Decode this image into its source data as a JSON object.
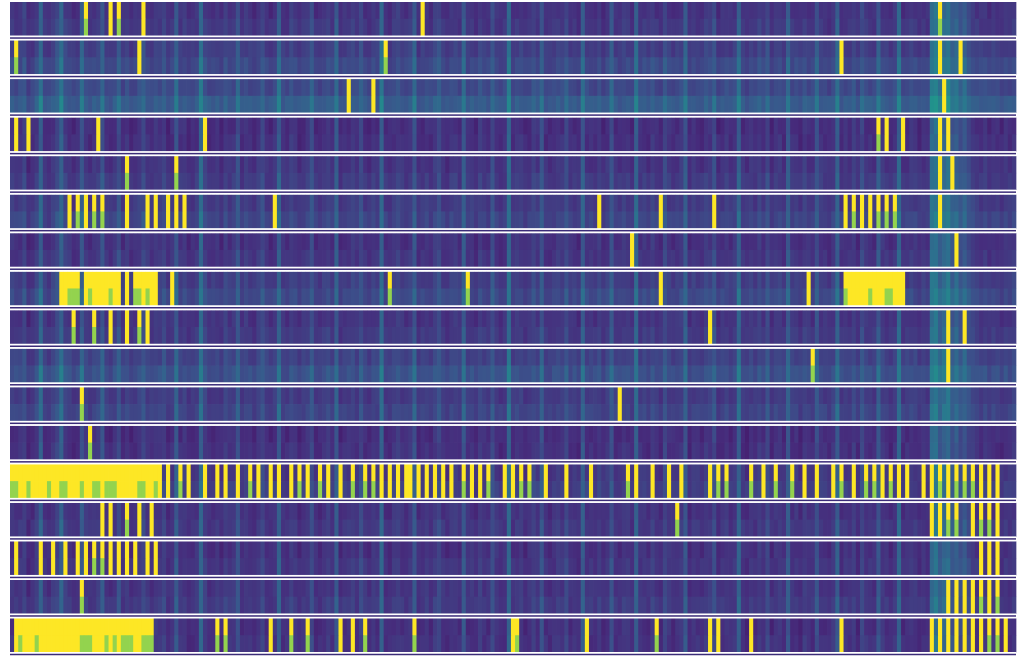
{
  "chart_data": {
    "type": "heatmap",
    "title": "",
    "xlabel": "",
    "ylabel": "",
    "colormap": "viridis",
    "colors": {
      "low": "#3b2c78",
      "mid": "#2f6f8c",
      "high": "#fde725",
      "separator": "#ffffff",
      "background": "#ffffff"
    },
    "n_bands": 17,
    "band_labels": [],
    "columns_per_row": 245,
    "column_baseline": [
      0.15,
      0.14,
      0.15,
      0.2,
      0.1,
      0.12,
      0.18,
      0.33,
      0.14,
      0.12,
      0.16,
      0.22,
      0.34,
      0.18,
      0.15,
      0.12,
      0.14,
      0.3,
      0.16,
      0.13,
      0.15,
      0.17,
      0.28,
      0.14,
      0.12,
      0.15,
      0.25,
      0.13,
      0.16,
      0.12,
      0.14,
      0.17,
      0.22,
      0.15,
      0.13,
      0.17,
      0.15,
      0.2,
      0.12,
      0.14,
      0.3,
      0.14,
      0.16,
      0.12,
      0.13,
      0.15,
      0.36,
      0.18,
      0.13,
      0.14,
      0.15,
      0.12,
      0.18,
      0.14,
      0.15,
      0.26,
      0.13,
      0.16,
      0.14,
      0.12,
      0.16,
      0.22,
      0.14,
      0.12,
      0.15,
      0.32,
      0.14,
      0.13,
      0.18,
      0.15,
      0.12,
      0.14,
      0.16,
      0.24,
      0.13,
      0.12,
      0.15,
      0.18,
      0.14,
      0.3,
      0.12,
      0.14,
      0.15,
      0.17,
      0.13,
      0.22,
      0.14,
      0.12,
      0.16,
      0.14,
      0.35,
      0.13,
      0.12,
      0.15,
      0.18,
      0.14,
      0.13,
      0.16,
      0.28,
      0.12,
      0.14,
      0.15,
      0.13,
      0.17,
      0.22,
      0.14,
      0.12,
      0.15,
      0.16,
      0.13,
      0.3,
      0.14,
      0.15,
      0.12,
      0.18,
      0.14,
      0.13,
      0.24,
      0.15,
      0.12,
      0.14,
      0.36,
      0.13,
      0.15,
      0.16,
      0.12,
      0.14,
      0.18,
      0.15,
      0.27,
      0.13,
      0.12,
      0.14,
      0.16,
      0.15,
      0.22,
      0.13,
      0.14,
      0.12,
      0.31,
      0.15,
      0.14,
      0.13,
      0.17,
      0.12,
      0.15,
      0.26,
      0.14,
      0.13,
      0.16,
      0.15,
      0.12,
      0.33,
      0.14,
      0.15,
      0.13,
      0.18,
      0.14,
      0.12,
      0.22,
      0.15,
      0.13,
      0.14,
      0.16,
      0.29,
      0.12,
      0.15,
      0.14,
      0.13,
      0.17,
      0.15,
      0.24,
      0.12,
      0.14,
      0.16,
      0.13,
      0.15,
      0.34,
      0.14,
      0.12,
      0.15,
      0.13,
      0.18,
      0.14,
      0.22,
      0.12,
      0.15,
      0.16,
      0.13,
      0.3,
      0.14,
      0.15,
      0.12,
      0.17,
      0.14,
      0.13,
      0.26,
      0.15,
      0.14,
      0.12,
      0.16,
      0.32,
      0.13,
      0.15,
      0.14,
      0.18,
      0.12,
      0.22,
      0.15,
      0.14,
      0.13,
      0.28,
      0.16,
      0.14,
      0.12,
      0.15,
      0.35,
      0.13,
      0.14,
      0.16,
      0.15,
      0.12,
      0.14,
      0.13,
      0.38,
      0.42,
      0.3,
      0.36,
      0.4,
      0.28,
      0.33,
      0.25,
      0.3,
      0.22,
      0.18,
      0.15,
      0.14,
      0.16,
      0.13,
      0.15,
      0.14,
      0.12,
      0.15,
      0.13,
      0.16
    ],
    "band_extra": [
      0.05,
      0.12,
      0.2,
      0.02,
      0.06,
      0.1,
      0.04,
      0.12,
      0.06,
      0.15,
      0.1,
      0.02,
      0.08,
      0.05,
      0.04,
      0.06,
      0.03
    ],
    "bright_cells": [
      [
        0,
        18
      ],
      [
        0,
        24
      ],
      [
        0,
        26
      ],
      [
        0,
        32
      ],
      [
        0,
        100
      ],
      [
        0,
        226
      ],
      [
        1,
        1
      ],
      [
        1,
        31
      ],
      [
        1,
        91
      ],
      [
        1,
        202
      ],
      [
        1,
        226
      ],
      [
        1,
        231
      ],
      [
        2,
        82
      ],
      [
        2,
        88
      ],
      [
        2,
        227
      ],
      [
        3,
        1
      ],
      [
        3,
        4
      ],
      [
        3,
        21
      ],
      [
        3,
        47
      ],
      [
        3,
        211
      ],
      [
        3,
        213
      ],
      [
        3,
        217
      ],
      [
        3,
        226
      ],
      [
        3,
        228
      ],
      [
        4,
        28
      ],
      [
        4,
        40
      ],
      [
        4,
        226
      ],
      [
        4,
        229
      ],
      [
        5,
        14
      ],
      [
        5,
        16
      ],
      [
        5,
        18
      ],
      [
        5,
        20
      ],
      [
        5,
        22
      ],
      [
        5,
        28
      ],
      [
        5,
        33
      ],
      [
        5,
        35
      ],
      [
        5,
        38
      ],
      [
        5,
        40
      ],
      [
        5,
        42
      ],
      [
        5,
        64
      ],
      [
        5,
        143
      ],
      [
        5,
        158
      ],
      [
        5,
        171
      ],
      [
        5,
        203
      ],
      [
        5,
        205
      ],
      [
        5,
        207
      ],
      [
        5,
        209
      ],
      [
        5,
        211
      ],
      [
        5,
        213
      ],
      [
        5,
        215
      ],
      [
        5,
        226
      ],
      [
        6,
        151
      ],
      [
        6,
        230
      ],
      [
        7,
        12
      ],
      [
        7,
        13
      ],
      [
        7,
        14
      ],
      [
        7,
        15
      ],
      [
        7,
        16
      ],
      [
        7,
        18
      ],
      [
        7,
        19
      ],
      [
        7,
        20
      ],
      [
        7,
        21
      ],
      [
        7,
        22
      ],
      [
        7,
        23
      ],
      [
        7,
        24
      ],
      [
        7,
        25
      ],
      [
        7,
        26
      ],
      [
        7,
        28
      ],
      [
        7,
        30
      ],
      [
        7,
        31
      ],
      [
        7,
        32
      ],
      [
        7,
        33
      ],
      [
        7,
        34
      ],
      [
        7,
        35
      ],
      [
        7,
        39
      ],
      [
        7,
        92
      ],
      [
        7,
        111
      ],
      [
        7,
        158
      ],
      [
        7,
        194
      ],
      [
        7,
        203
      ],
      [
        7,
        204
      ],
      [
        7,
        205
      ],
      [
        7,
        206
      ],
      [
        7,
        207
      ],
      [
        7,
        208
      ],
      [
        7,
        209
      ],
      [
        7,
        210
      ],
      [
        7,
        211
      ],
      [
        7,
        212
      ],
      [
        7,
        213
      ],
      [
        7,
        214
      ],
      [
        7,
        215
      ],
      [
        7,
        216
      ],
      [
        7,
        217
      ],
      [
        8,
        15
      ],
      [
        8,
        20
      ],
      [
        8,
        24
      ],
      [
        8,
        28
      ],
      [
        8,
        31
      ],
      [
        8,
        33
      ],
      [
        8,
        170
      ],
      [
        8,
        228
      ],
      [
        8,
        232
      ],
      [
        9,
        195
      ],
      [
        9,
        228
      ],
      [
        10,
        17
      ],
      [
        10,
        148
      ],
      [
        11,
        19
      ],
      [
        12,
        0
      ],
      [
        12,
        1
      ],
      [
        12,
        2
      ],
      [
        12,
        3
      ],
      [
        12,
        4
      ],
      [
        12,
        5
      ],
      [
        12,
        6
      ],
      [
        12,
        7
      ],
      [
        12,
        8
      ],
      [
        12,
        9
      ],
      [
        12,
        10
      ],
      [
        12,
        11
      ],
      [
        12,
        12
      ],
      [
        12,
        13
      ],
      [
        12,
        14
      ],
      [
        12,
        15
      ],
      [
        12,
        16
      ],
      [
        12,
        17
      ],
      [
        12,
        18
      ],
      [
        12,
        19
      ],
      [
        12,
        20
      ],
      [
        12,
        21
      ],
      [
        12,
        22
      ],
      [
        12,
        23
      ],
      [
        12,
        24
      ],
      [
        12,
        25
      ],
      [
        12,
        26
      ],
      [
        12,
        27
      ],
      [
        12,
        28
      ],
      [
        12,
        29
      ],
      [
        12,
        30
      ],
      [
        12,
        31
      ],
      [
        12,
        32
      ],
      [
        12,
        33
      ],
      [
        12,
        34
      ],
      [
        12,
        35
      ],
      [
        12,
        36
      ],
      [
        12,
        38
      ],
      [
        12,
        41
      ],
      [
        12,
        43
      ],
      [
        12,
        47
      ],
      [
        12,
        50
      ],
      [
        12,
        52
      ],
      [
        12,
        55
      ],
      [
        12,
        58
      ],
      [
        12,
        60
      ],
      [
        12,
        63
      ],
      [
        12,
        65
      ],
      [
        12,
        68
      ],
      [
        12,
        70
      ],
      [
        12,
        72
      ],
      [
        12,
        75
      ],
      [
        12,
        77
      ],
      [
        12,
        80
      ],
      [
        12,
        83
      ],
      [
        12,
        86
      ],
      [
        12,
        88
      ],
      [
        12,
        90
      ],
      [
        12,
        92
      ],
      [
        12,
        94
      ],
      [
        12,
        96
      ],
      [
        12,
        97
      ],
      [
        12,
        99
      ],
      [
        12,
        101
      ],
      [
        12,
        103
      ],
      [
        12,
        105
      ],
      [
        12,
        107
      ],
      [
        12,
        110
      ],
      [
        12,
        112
      ],
      [
        12,
        114
      ],
      [
        12,
        116
      ],
      [
        12,
        120
      ],
      [
        12,
        122
      ],
      [
        12,
        124
      ],
      [
        12,
        126
      ],
      [
        12,
        130
      ],
      [
        12,
        135
      ],
      [
        12,
        141
      ],
      [
        12,
        150
      ],
      [
        12,
        152
      ],
      [
        12,
        156
      ],
      [
        12,
        160
      ],
      [
        12,
        163
      ],
      [
        12,
        170
      ],
      [
        12,
        172
      ],
      [
        12,
        174
      ],
      [
        12,
        180
      ],
      [
        12,
        183
      ],
      [
        12,
        186
      ],
      [
        12,
        190
      ],
      [
        12,
        193
      ],
      [
        12,
        196
      ],
      [
        12,
        200
      ],
      [
        12,
        202
      ],
      [
        12,
        205
      ],
      [
        12,
        208
      ],
      [
        12,
        210
      ],
      [
        12,
        212
      ],
      [
        12,
        214
      ],
      [
        12,
        216
      ],
      [
        12,
        218
      ],
      [
        12,
        222
      ],
      [
        12,
        224
      ],
      [
        12,
        226
      ],
      [
        12,
        228
      ],
      [
        12,
        230
      ],
      [
        12,
        232
      ],
      [
        12,
        234
      ],
      [
        12,
        236
      ],
      [
        12,
        238
      ],
      [
        12,
        240
      ],
      [
        13,
        22
      ],
      [
        13,
        24
      ],
      [
        13,
        28
      ],
      [
        13,
        31
      ],
      [
        13,
        34
      ],
      [
        13,
        162
      ],
      [
        13,
        224
      ],
      [
        13,
        226
      ],
      [
        13,
        228
      ],
      [
        13,
        230
      ],
      [
        13,
        234
      ],
      [
        13,
        236
      ],
      [
        13,
        238
      ],
      [
        13,
        240
      ],
      [
        14,
        1
      ],
      [
        14,
        7
      ],
      [
        14,
        10
      ],
      [
        14,
        13
      ],
      [
        14,
        16
      ],
      [
        14,
        18
      ],
      [
        14,
        20
      ],
      [
        14,
        22
      ],
      [
        14,
        24
      ],
      [
        14,
        26
      ],
      [
        14,
        28
      ],
      [
        14,
        30
      ],
      [
        14,
        33
      ],
      [
        14,
        35
      ],
      [
        14,
        236
      ],
      [
        14,
        238
      ],
      [
        14,
        240
      ],
      [
        15,
        17
      ],
      [
        15,
        228
      ],
      [
        15,
        230
      ],
      [
        15,
        232
      ],
      [
        15,
        234
      ],
      [
        15,
        236
      ],
      [
        15,
        238
      ],
      [
        15,
        240
      ],
      [
        16,
        1
      ],
      [
        16,
        2
      ],
      [
        16,
        3
      ],
      [
        16,
        4
      ],
      [
        16,
        5
      ],
      [
        16,
        6
      ],
      [
        16,
        7
      ],
      [
        16,
        8
      ],
      [
        16,
        9
      ],
      [
        16,
        10
      ],
      [
        16,
        11
      ],
      [
        16,
        12
      ],
      [
        16,
        13
      ],
      [
        16,
        14
      ],
      [
        16,
        15
      ],
      [
        16,
        16
      ],
      [
        16,
        17
      ],
      [
        16,
        18
      ],
      [
        16,
        19
      ],
      [
        16,
        20
      ],
      [
        16,
        21
      ],
      [
        16,
        22
      ],
      [
        16,
        23
      ],
      [
        16,
        24
      ],
      [
        16,
        25
      ],
      [
        16,
        26
      ],
      [
        16,
        27
      ],
      [
        16,
        28
      ],
      [
        16,
        29
      ],
      [
        16,
        30
      ],
      [
        16,
        31
      ],
      [
        16,
        32
      ],
      [
        16,
        33
      ],
      [
        16,
        34
      ],
      [
        16,
        50
      ],
      [
        16,
        52
      ],
      [
        16,
        63
      ],
      [
        16,
        68
      ],
      [
        16,
        72
      ],
      [
        16,
        80
      ],
      [
        16,
        83
      ],
      [
        16,
        86
      ],
      [
        16,
        98
      ],
      [
        16,
        122
      ],
      [
        16,
        123
      ],
      [
        16,
        140
      ],
      [
        16,
        157
      ],
      [
        16,
        170
      ],
      [
        16,
        172
      ],
      [
        16,
        180
      ],
      [
        16,
        202
      ],
      [
        16,
        224
      ],
      [
        16,
        226
      ],
      [
        16,
        228
      ],
      [
        16,
        230
      ],
      [
        16,
        232
      ],
      [
        16,
        234
      ],
      [
        16,
        236
      ],
      [
        16,
        238
      ],
      [
        16,
        240
      ],
      [
        16,
        242
      ]
    ],
    "data_rows": 26
  }
}
